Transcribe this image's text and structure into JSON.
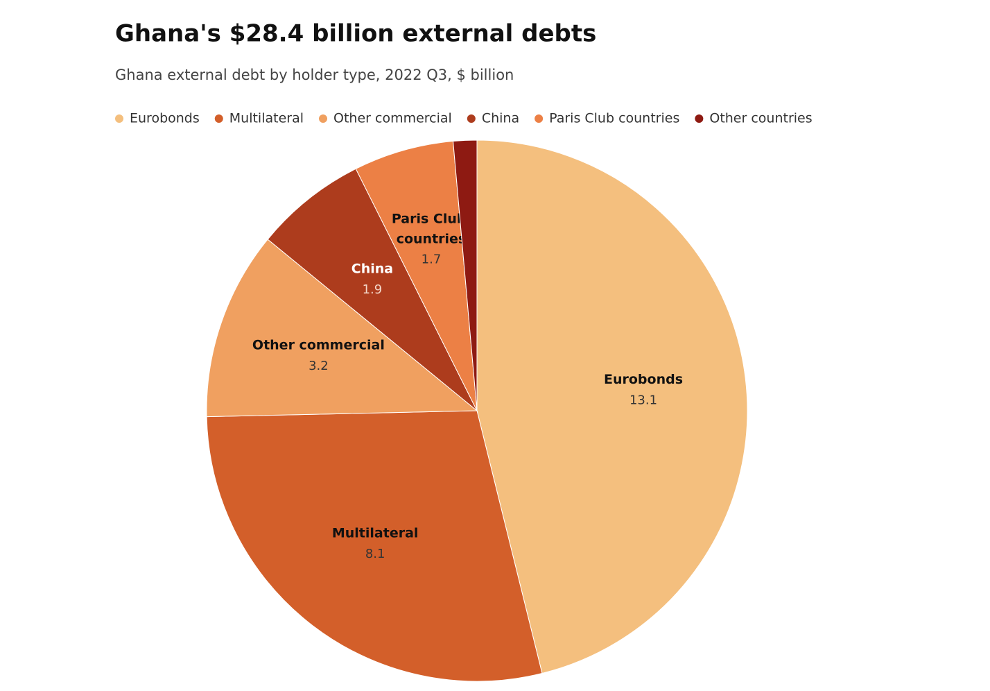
{
  "chart_data": {
    "type": "pie",
    "title": "Ghana's $28.4 billion external debts",
    "subtitle": "Ghana external debt by holder type, 2022 Q3, $ billion",
    "categories": [
      "Eurobonds",
      "Multilateral",
      "Other commercial",
      "China",
      "Paris Club countries",
      "Other countries"
    ],
    "values": [
      13.1,
      8.1,
      3.2,
      1.9,
      1.7,
      0.4
    ],
    "colors": [
      "#f4bf7e",
      "#d35f2a",
      "#f0a060",
      "#ad3c1d",
      "#ec8045",
      "#8e1a12"
    ],
    "legend": "top"
  }
}
